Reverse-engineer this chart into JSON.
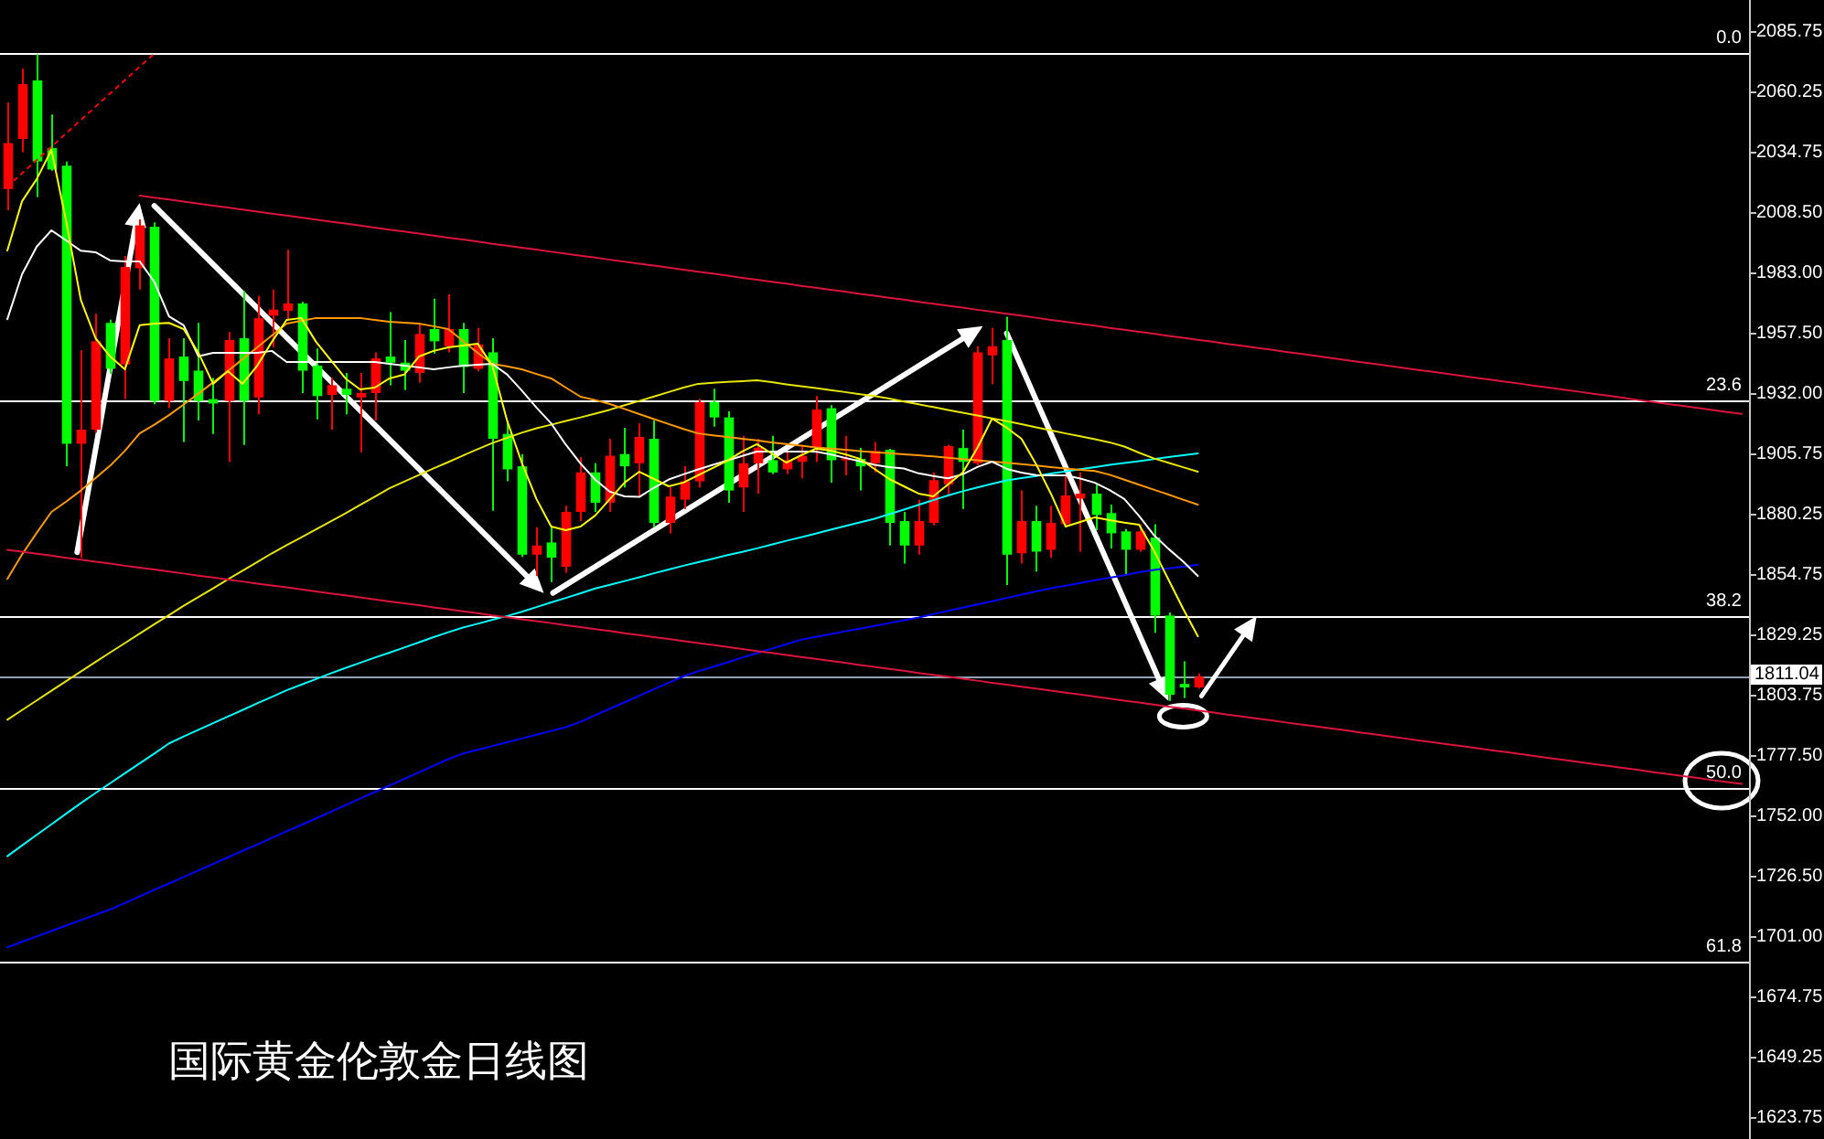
{
  "chart_data": {
    "type": "candlestick",
    "title": "国际黄金伦敦金日线图",
    "categories": [
      null,
      null,
      null,
      null,
      null,
      null,
      null,
      null,
      null,
      null,
      null,
      null,
      null,
      null,
      null,
      null,
      null,
      null,
      null,
      null,
      null,
      null,
      null,
      null,
      null,
      null,
      null,
      null,
      null,
      null,
      null,
      null,
      null,
      null,
      null,
      null,
      null,
      null,
      null,
      null,
      null,
      null,
      null,
      null,
      null,
      null,
      null,
      null,
      null,
      null,
      null,
      null,
      null,
      null,
      null,
      null,
      null,
      null,
      null,
      null,
      null,
      null,
      null,
      null,
      null,
      null,
      null,
      null,
      null,
      null,
      null,
      null,
      null,
      null,
      null,
      null,
      null,
      null,
      null,
      null,
      null,
      null,
      null,
      null,
      null,
      null,
      null,
      null,
      null,
      null,
      null,
      null,
      null,
      null,
      null,
      null,
      null,
      null,
      null,
      null,
      null,
      null,
      null,
      null,
      null,
      null,
      null,
      null,
      null,
      null,
      null,
      null,
      null,
      null,
      null,
      null,
      null,
      null,
      null
    ],
    "series": [
      {
        "type": "line",
        "color": "#0000ff",
        "values": [
          1695.9,
          1698.3,
          1700.6,
          1702.9,
          1705.2,
          1707.5,
          1709.8,
          1712.1,
          1714.8,
          1717.6,
          1720.4,
          1723.1,
          1725.9,
          1728.7,
          1731.4,
          1734.2,
          1737.0,
          1739.7,
          1742.5,
          1745.3,
          1748.0,
          1750.8,
          1753.6,
          1756.4,
          1759.2,
          1762.0,
          1764.8,
          1767.6,
          1770.4,
          1773.2,
          1776.0,
          1778.4,
          1780.0,
          1781.6,
          1783.2,
          1784.8,
          1786.4,
          1788.0,
          1789.6,
          1791.9,
          1794.7,
          1797.5,
          1800.2,
          1803.0,
          1805.8,
          1808.5,
          1811.3,
          1813.4,
          1815.3,
          1817.2,
          1819.2,
          1821.1,
          1823.0,
          1824.9,
          1826.8,
          1828.0,
          1829.2,
          1830.4,
          1831.5,
          1832.7,
          1833.9,
          1835.1,
          1836.3,
          1837.7,
          1839.1,
          1840.5,
          1841.8,
          1843.2,
          1844.6,
          1846.0,
          1847.4,
          1848.7,
          1849.8,
          1851.0,
          1852.1,
          1853.2,
          1854.3,
          1855.5,
          1856.5,
          1857.2,
          1857.9,
          1858.7,
          null,
          null,
          null,
          null,
          null,
          null,
          null,
          null,
          null,
          null,
          null,
          null,
          null,
          null,
          null,
          null,
          null,
          null,
          null,
          null,
          null,
          null,
          null,
          null,
          null,
          null,
          null,
          null,
          null,
          null,
          null,
          null,
          null,
          null,
          null,
          null,
          null
        ]
      },
      {
        "type": "line",
        "color": "#00ffff",
        "values": [
          1734.7,
          1739.3,
          1743.8,
          1748.3,
          1752.8,
          1757.3,
          1761.6,
          1765.8,
          1770.0,
          1774.2,
          1778.4,
          1782.7,
          1785.7,
          1788.5,
          1791.3,
          1794.1,
          1796.9,
          1799.8,
          1802.5,
          1805.3,
          1807.7,
          1810.1,
          1812.5,
          1814.8,
          1817.0,
          1819.2,
          1821.3,
          1823.5,
          1825.7,
          1827.9,
          1830.0,
          1832.0,
          1833.6,
          1835.3,
          1836.9,
          1838.7,
          1840.7,
          1842.7,
          1844.6,
          1846.6,
          1848.6,
          1850.2,
          1851.8,
          1853.4,
          1855.1,
          1856.7,
          1858.3,
          1859.8,
          1861.3,
          1862.8,
          1864.2,
          1865.7,
          1867.3,
          1868.9,
          1870.4,
          1872.0,
          1873.6,
          1875.2,
          1876.7,
          1878.3,
          1880.2,
          1882.2,
          1884.2,
          1886.2,
          1888.2,
          1890.0,
          1891.6,
          1893.2,
          1894.6,
          1895.6,
          1896.5,
          1897.5,
          1898.4,
          1899.4,
          1900.3,
          1901.2,
          1902.0,
          1902.8,
          1903.7,
          1904.5,
          1905.3,
          1906.1,
          null,
          null,
          null,
          null,
          null,
          null,
          null,
          null,
          null,
          null,
          null,
          null,
          null,
          null,
          null,
          null,
          null,
          null,
          null,
          null,
          null,
          null,
          null,
          null,
          null,
          null,
          null,
          null,
          null,
          null,
          null,
          null,
          null,
          null,
          null,
          null,
          null
        ]
      },
      {
        "type": "line",
        "color": "#e6e600",
        "values": [
          1792.8,
          1796.9,
          1801.0,
          1805.1,
          1809.2,
          1813.3,
          1817.4,
          1821.4,
          1825.4,
          1829.4,
          1833.4,
          1837.3,
          1841.3,
          1845.0,
          1848.7,
          1852.5,
          1856.2,
          1859.9,
          1863.6,
          1867.1,
          1870.4,
          1873.8,
          1877.2,
          1880.6,
          1884.2,
          1887.7,
          1891.3,
          1894.1,
          1896.9,
          1899.7,
          1902.4,
          1905.2,
          1907.9,
          1910.5,
          1912.7,
          1914.9,
          1916.8,
          1918.3,
          1919.9,
          1921.4,
          1923.0,
          1924.7,
          1926.6,
          1928.4,
          1930.3,
          1932.2,
          1934.1,
          1935.7,
          1936.1,
          1936.5,
          1936.8,
          1937.2,
          1936.4,
          1935.5,
          1934.7,
          1933.9,
          1933.0,
          1932.2,
          1931.3,
          1930.5,
          1929.4,
          1928.2,
          1927.0,
          1925.8,
          1924.6,
          1923.4,
          1922.2,
          1921.0,
          1919.8,
          1918.5,
          1917.2,
          1915.9,
          1914.6,
          1913.4,
          1912.1,
          1910.8,
          1909.0,
          1906.4,
          1904.0,
          1902.1,
          1900.2,
          1898.3,
          null,
          null,
          null,
          null,
          null,
          null,
          null,
          null,
          null,
          null,
          null,
          null,
          null,
          null,
          null,
          null,
          null,
          null,
          null,
          null,
          null,
          null,
          null,
          null,
          null,
          null,
          null,
          null,
          null,
          null,
          null,
          null,
          null,
          null,
          null,
          null,
          null
        ]
      },
      {
        "type": "line",
        "color": "#ff9900",
        "values": [
          1852.7,
          1863.1,
          1872.3,
          1881.2,
          1885.6,
          1890.3,
          1895.6,
          1900.9,
          1907.2,
          1914.6,
          1918.3,
          1922.4,
          1926.9,
          1931.5,
          1936.3,
          1941.1,
          1946.2,
          1951.2,
          1956.3,
          1961.3,
          1962.5,
          1963.7,
          1963.7,
          1963.7,
          1963.7,
          1962.9,
          1962.1,
          1961.7,
          1961.3,
          1960.2,
          1959.0,
          1953.9,
          1948.9,
          1944.2,
          1943.1,
          1941.9,
          1939.9,
          1938.0,
          1934.1,
          1930.2,
          1928.8,
          1927.1,
          1925.0,
          1922.8,
          1920.7,
          1918.6,
          1916.5,
          1914.6,
          1913.8,
          1913.1,
          1912.3,
          1911.6,
          1910.8,
          1910.1,
          1909.4,
          1908.6,
          1908.1,
          1907.6,
          1907.1,
          1906.6,
          1906.2,
          1905.7,
          1905.3,
          1904.8,
          1904.2,
          1903.7,
          1903.2,
          1902.6,
          1902.1,
          1901.5,
          1900.9,
          1900.3,
          1899.7,
          1899.1,
          1898.6,
          1897.0,
          1894.9,
          1892.8,
          1890.7,
          1888.6,
          1886.4,
          1884.3,
          null,
          null,
          null,
          null,
          null,
          null,
          null,
          null,
          null,
          null,
          null,
          null,
          null,
          null,
          null,
          null,
          null,
          null,
          null,
          null,
          null,
          null,
          null,
          null,
          null,
          null,
          null,
          null,
          null,
          null,
          null,
          null,
          null,
          null,
          null,
          null,
          null
        ]
      },
      {
        "type": "line",
        "color": "#ffffff",
        "values": [
          1963.2,
          1982.3,
          1994.1,
          2001.0,
          1996.7,
          1992.3,
          1991.7,
          1988.2,
          1987.8,
          1987.8,
          1979.1,
          1964.4,
          1960.6,
          1947.4,
          1948.9,
          1948.9,
          1948.9,
          1948.9,
          1949.7,
          1945.0,
          1945.0,
          1945.0,
          1945.0,
          1945.0,
          1945.0,
          1945.0,
          1944.2,
          1943.4,
          1942.7,
          1941.9,
          1942.7,
          1943.4,
          1943.8,
          1944.2,
          1939.7,
          1932.9,
          1925.6,
          1918.9,
          1909.8,
          1901.8,
          1894.9,
          1889.8,
          1887.8,
          1887.6,
          1891.5,
          1895.0,
          1897.2,
          1899.3,
          1901.2,
          1903.1,
          1905.0,
          1906.9,
          1906.9,
          1906.9,
          1906.9,
          1906.9,
          1905.7,
          1904.2,
          1902.8,
          1901.2,
          1900.3,
          1899.7,
          1897.6,
          1896.5,
          1895.5,
          1897.2,
          1900.3,
          1902.6,
          1899.5,
          1897.9,
          1896.9,
          1896.8,
          1896.8,
          1895.4,
          1893.6,
          1890.5,
          1886.7,
          1879.5,
          1871.4,
          1865.5,
          1860.1,
          1854.0,
          null,
          null,
          null,
          null,
          null,
          null,
          null,
          null,
          null,
          null,
          null,
          null,
          null,
          null,
          null,
          null,
          null,
          null,
          null,
          null,
          null,
          null,
          null,
          null,
          null,
          null,
          null,
          null,
          null,
          null,
          null,
          null,
          null,
          null,
          null,
          null,
          null
        ]
      },
      {
        "type": "line",
        "color": "#ffff00",
        "values": [
          1992.4,
          2013.4,
          2022.8,
          2035.2,
          2004.9,
          1971.4,
          1955.1,
          1947.3,
          1941.9,
          1960.6,
          1961.3,
          1961.6,
          1959.0,
          1948.9,
          1935.7,
          1941.1,
          1935.7,
          1943.4,
          1953.6,
          1962.9,
          1963.7,
          1953.6,
          1945.8,
          1938.0,
          1933.3,
          1934.1,
          1938.0,
          1939.6,
          1947.3,
          1949.7,
          1951.2,
          1952.0,
          1952.8,
          1943.4,
          1920.1,
          1902.2,
          1886.7,
          1875.0,
          1873.4,
          1875.0,
          1879.7,
          1886.7,
          1893.7,
          1898.3,
          1895.2,
          1892.1,
          1893.7,
          1896.8,
          1899.9,
          1903.0,
          1906.9,
          1910.0,
          1906.1,
          1902.2,
          1905.3,
          1908.1,
          1907.3,
          1905.7,
          1903.8,
          1899.5,
          1895.2,
          1892.1,
          1889.0,
          1887.8,
          1892.9,
          1897.9,
          1908.4,
          1920.9,
          1917.0,
          1912.3,
          1901.4,
          1889.0,
          1875.0,
          1876.9,
          1878.9,
          1877.7,
          1876.6,
          1875.8,
          1864.9,
          1852.4,
          1840.0,
          1828.3,
          null,
          null,
          null,
          null,
          null,
          null,
          null,
          null,
          null,
          null,
          null,
          null,
          null,
          null,
          null,
          null,
          null,
          null,
          null,
          null,
          null,
          null,
          null,
          null,
          null,
          null,
          null,
          null,
          null,
          null,
          null,
          null,
          null,
          null,
          null,
          null,
          null
        ]
      },
      {
        "type": "line",
        "color": "#dc143c",
        "values": [
          null,
          null,
          null,
          null,
          null,
          null,
          null,
          null,
          null,
          2015.8,
          2014.9,
          2014.1,
          2013.2,
          2012.4,
          2011.5,
          2010.7,
          2009.8,
          2009.0,
          2008.1,
          2007.3,
          2006.4,
          2005.6,
          2004.7,
          2003.9,
          2003.0,
          2002.2,
          2001.3,
          2000.5,
          1999.6,
          1998.8,
          1997.9,
          1997.1,
          1996.2,
          1995.3,
          1994.5,
          1993.6,
          1992.8,
          1991.9,
          1991.1,
          1990.2,
          1989.4,
          1988.5,
          1987.7,
          1986.8,
          1986.0,
          1985.1,
          1984.3,
          1983.4,
          1982.6,
          1981.7,
          1980.8,
          1980.0,
          1979.1,
          1978.3,
          1977.4,
          1976.6,
          1975.7,
          1974.9,
          1974.0,
          1973.2,
          1972.3,
          1971.5,
          1970.6,
          1969.8,
          1968.9,
          1968.1,
          1967.2,
          1966.4,
          1965.5,
          1964.7,
          1963.8,
          1962.9,
          1962.1,
          1961.2,
          1960.4,
          1959.5,
          1958.7,
          1957.8,
          1957.0,
          1956.1,
          1955.3,
          1954.4,
          1953.6,
          1952.7,
          1951.9,
          1951.0,
          1950.2,
          1949.3,
          1948.5,
          1947.6,
          1946.7,
          1945.9,
          1945.0,
          1944.2,
          1943.3,
          1942.5,
          1941.6,
          1940.8,
          1939.9,
          1939.1,
          1938.2,
          1937.4,
          1936.5,
          1935.7,
          1934.8,
          1934.0,
          1933.1,
          1932.3,
          1931.4,
          1930.6,
          1929.7,
          1928.8,
          1928.0,
          1927.1,
          1926.3,
          1925.4,
          1924.6,
          1923.7,
          1922.9
        ]
      },
      {
        "type": "line",
        "color": "#dc143c",
        "values": [
          1865.1,
          1864.3,
          1863.4,
          1862.6,
          1861.7,
          1860.9,
          1860.0,
          1859.2,
          1858.3,
          1857.5,
          1856.7,
          1855.8,
          1855.0,
          1854.1,
          1853.3,
          1852.4,
          1851.6,
          1850.7,
          1849.9,
          1849.1,
          1848.2,
          1847.4,
          1846.5,
          1845.7,
          1844.8,
          1844.0,
          1843.1,
          1842.3,
          1841.5,
          1840.6,
          1839.8,
          1838.9,
          1838.1,
          1837.2,
          1836.4,
          1835.5,
          1834.7,
          1833.9,
          1833.0,
          1832.2,
          1831.3,
          1830.5,
          1829.6,
          1828.8,
          1827.9,
          1827.1,
          1826.3,
          1825.4,
          1824.6,
          1823.7,
          1822.9,
          1822.0,
          1821.2,
          1820.3,
          1819.5,
          1818.7,
          1817.8,
          1817.0,
          1816.1,
          1815.3,
          1814.4,
          1813.6,
          1812.7,
          1811.9,
          1811.1,
          1810.2,
          1809.4,
          1808.5,
          1807.7,
          1806.8,
          1806.0,
          1805.2,
          1804.3,
          1803.5,
          1802.6,
          1801.8,
          1800.9,
          1800.1,
          1799.2,
          1798.4,
          1797.6,
          1796.7,
          1795.9,
          1795.0,
          1794.2,
          1793.3,
          1792.5,
          1791.6,
          1790.8,
          1790.0,
          1789.1,
          1788.3,
          1787.4,
          1786.6,
          1785.7,
          1784.9,
          1784.0,
          1783.2,
          1782.3,
          1781.5,
          1780.7,
          1779.8,
          1779.0,
          1778.1,
          1777.3,
          1776.4,
          1775.6,
          1774.7,
          1773.9,
          1773.1,
          1772.2,
          1771.4,
          1770.5,
          1769.7,
          1768.8,
          1768.0,
          1767.1,
          1766.3,
          1765.5
        ]
      },
      {
        "type": "line",
        "color": "#ff0000",
        "line_style": "dotted",
        "values": [
          2019.6,
          2025.3,
          2030.9,
          2036.6,
          2042.3,
          2047.9,
          2053.6,
          2059.3,
          2064.9,
          2070.6,
          2076.2,
          null,
          null,
          null,
          null,
          null,
          null,
          null,
          null,
          null,
          null,
          null,
          null,
          null,
          null,
          null,
          null,
          null,
          null,
          null,
          null,
          null,
          null,
          null,
          null,
          null,
          null,
          null,
          null,
          null,
          null,
          null,
          null,
          null,
          null,
          null,
          null,
          null,
          null,
          null,
          null,
          null,
          null,
          null,
          null,
          null,
          null,
          null,
          null,
          null,
          null,
          null,
          null,
          null,
          null,
          null,
          null,
          null,
          null,
          null,
          null,
          null,
          null,
          null,
          null,
          null,
          null,
          null,
          null,
          null,
          null,
          null,
          null,
          null,
          null,
          null,
          null,
          null,
          null,
          null,
          null,
          null,
          null,
          null,
          null,
          null,
          null,
          null,
          null,
          null,
          null,
          null,
          null,
          null,
          null,
          null,
          null,
          null,
          null,
          null,
          null,
          null,
          null,
          null,
          null,
          null,
          null,
          null,
          null
        ]
      },
      {
        "ohlc": [
          [
            2018.6,
            2055.4,
            2009.5,
            2038.1
          ],
          [
            2039.9,
            2069.7,
            2034.2,
            2063.2
          ],
          [
            2064.8,
            2076.0,
            2015.2,
            2030.3
          ],
          [
            2036.0,
            2050.3,
            2026.4,
            2026.9
          ],
          [
            2028.5,
            2030.3,
            1900.6,
            1910.2
          ],
          [
            1910.2,
            1949.9,
            1861.7,
            1916.2
          ],
          [
            1916.2,
            1965.5,
            1914.9,
            1953.8
          ],
          [
            1961.6,
            1963.0,
            1940.0,
            1942.1
          ],
          [
            1943.9,
            1990.1,
            1929.2,
            1985.4
          ],
          [
            1984.9,
            2005.7,
            1975.8,
            2003.1
          ],
          [
            2002.5,
            2004.4,
            1927.0,
            1928.4
          ],
          [
            1928.4,
            1955.1,
            1925.3,
            1946.5
          ],
          [
            1947.3,
            1955.1,
            1911.0,
            1936.9
          ],
          [
            1941.3,
            1961.6,
            1920.1,
            1928.4
          ],
          [
            1929.2,
            1938.2,
            1914.4,
            1927.3
          ],
          [
            1928.4,
            1957.7,
            1902.5,
            1954.3
          ],
          [
            1955.1,
            1975.1,
            1909.7,
            1928.4
          ],
          [
            1929.9,
            1973.2,
            1922.7,
            1963.6
          ],
          [
            1964.7,
            1975.8,
            1951.2,
            1967.3
          ],
          [
            1966.8,
            1992.7,
            1962.9,
            1969.9
          ],
          [
            1969.9,
            1970.6,
            1931.8,
            1941.3
          ],
          [
            1943.4,
            1950.7,
            1920.6,
            1930.5
          ],
          [
            1931.0,
            1938.2,
            1916.2,
            1935.1
          ],
          [
            1933.6,
            1940.3,
            1922.7,
            1931.0
          ],
          [
            1929.9,
            1940.3,
            1906.6,
            1931.8
          ],
          [
            1931.8,
            1949.1,
            1920.1,
            1946.5
          ],
          [
            1947.3,
            1966.2,
            1935.1,
            1944.7
          ],
          [
            1944.7,
            1954.3,
            1933.0,
            1941.3
          ],
          [
            1940.3,
            1961.6,
            1936.2,
            1956.9
          ],
          [
            1959.0,
            1971.9,
            1948.6,
            1953.8
          ],
          [
            1951.7,
            1973.8,
            1949.1,
            1959.0
          ],
          [
            1959.0,
            1961.6,
            1931.8,
            1942.9
          ],
          [
            1942.1,
            1959.5,
            1941.0,
            1952.5
          ],
          [
            1949.1,
            1955.1,
            1881.7,
            1912.3
          ],
          [
            1914.4,
            1920.1,
            1894.2,
            1899.3
          ],
          [
            1900.6,
            1905.8,
            1862.0,
            1863.0
          ],
          [
            1863.0,
            1874.7,
            1854.0,
            1866.9
          ],
          [
            1868.2,
            1874.7,
            1851.4,
            1861.7
          ],
          [
            1857.9,
            1883.8,
            1855.3,
            1881.2
          ],
          [
            1881.2,
            1904.5,
            1877.3,
            1898.0
          ],
          [
            1898.0,
            1901.9,
            1881.2,
            1885.1
          ],
          [
            1885.1,
            1912.3,
            1881.2,
            1905.1
          ],
          [
            1905.8,
            1917.0,
            1891.6,
            1900.6
          ],
          [
            1901.9,
            1918.8,
            1887.7,
            1913.1
          ],
          [
            1912.3,
            1920.1,
            1874.7,
            1876.5
          ],
          [
            1876.5,
            1891.6,
            1872.1,
            1887.7
          ],
          [
            1886.4,
            1900.6,
            1882.5,
            1894.2
          ],
          [
            1894.2,
            1929.2,
            1891.6,
            1927.9
          ],
          [
            1927.9,
            1933.6,
            1917.5,
            1921.4
          ],
          [
            1921.4,
            1924.0,
            1885.1,
            1890.3
          ],
          [
            1891.6,
            1913.6,
            1881.2,
            1901.9
          ],
          [
            1901.9,
            1912.3,
            1889.0,
            1908.4
          ],
          [
            1903.2,
            1913.6,
            1897.3,
            1898.0
          ],
          [
            1899.3,
            1907.1,
            1897.3,
            1903.2
          ],
          [
            1902.5,
            1909.7,
            1895.5,
            1905.1
          ],
          [
            1908.4,
            1930.5,
            1902.5,
            1924.8
          ],
          [
            1925.3,
            1926.6,
            1893.6,
            1903.2
          ],
          [
            1903.2,
            1913.6,
            1896.8,
            1904.0
          ],
          [
            1903.8,
            1908.4,
            1890.3,
            1900.6
          ],
          [
            1901.9,
            1911.0,
            1898.0,
            1907.1
          ],
          [
            1907.6,
            1908.0,
            1866.9,
            1876.5
          ],
          [
            1877.3,
            1881.2,
            1859.2,
            1866.9
          ],
          [
            1866.9,
            1886.4,
            1863.0,
            1877.3
          ],
          [
            1876.5,
            1898.0,
            1875.5,
            1894.7
          ],
          [
            1892.9,
            1909.7,
            1887.7,
            1909.2
          ],
          [
            1908.4,
            1916.2,
            1882.5,
            1902.5
          ],
          [
            1901.9,
            1951.7,
            1901.0,
            1949.1
          ],
          [
            1947.8,
            1959.5,
            1935.6,
            1951.7
          ],
          [
            1954.3,
            1964.2,
            1850.1,
            1863.0
          ],
          [
            1863.6,
            1890.3,
            1859.2,
            1877.3
          ],
          [
            1877.3,
            1883.8,
            1855.8,
            1864.3
          ],
          [
            1865.1,
            1883.8,
            1861.7,
            1876.5
          ],
          [
            1876.0,
            1897.3,
            1874.7,
            1888.2
          ],
          [
            1886.9,
            1898.0,
            1864.3,
            1889.0
          ],
          [
            1889.0,
            1892.8,
            1873.4,
            1879.9
          ],
          [
            1880.7,
            1884.3,
            1865.6,
            1872.1
          ],
          [
            1872.9,
            1873.9,
            1854.0,
            1865.1
          ],
          [
            1865.1,
            1876.0,
            1864.3,
            1872.9
          ],
          [
            1870.3,
            1876.0,
            1829.8,
            1837.1
          ],
          [
            1837.1,
            1838.4,
            1800.8,
            1803.4
          ],
          [
            1808.0,
            1817.6,
            1802.1,
            1806.5
          ],
          [
            1806.5,
            1812.5,
            1806.0,
            1811.04
          ],
          null,
          null,
          null,
          null,
          null,
          null,
          null,
          null,
          null,
          null,
          null,
          null,
          null,
          null,
          null,
          null,
          null,
          null,
          null,
          null,
          null,
          null,
          null,
          null,
          null,
          null,
          null,
          null,
          null,
          null,
          null,
          null,
          null,
          null,
          null,
          null,
          null
        ],
        "colors": [
          "#ff0000",
          "#ff0000",
          "#00ff00",
          "#00ff00",
          "#00ff00",
          "#ff0000",
          "#ff0000",
          "#00ff00",
          "#ff0000",
          "#ff0000",
          "#00ff00",
          "#ff0000",
          "#00ff00",
          "#00ff00",
          "#00ff00",
          "#ff0000",
          "#00ff00",
          "#ff0000",
          "#ff0000",
          "#ff0000",
          "#00ff00",
          "#00ff00",
          "#ff0000",
          "#00ff00",
          "#ff0000",
          "#ff0000",
          "#00ff00",
          "#00ff00",
          "#ff0000",
          "#00ff00",
          "#ff0000",
          "#00ff00",
          "#ff0000",
          "#00ff00",
          "#00ff00",
          "#00ff00",
          "#ff0000",
          "#00ff00",
          "#ff0000",
          "#ff0000",
          "#00ff00",
          "#ff0000",
          "#00ff00",
          "#ff0000",
          "#00ff00",
          "#ff0000",
          "#ff0000",
          "#ff0000",
          "#00ff00",
          "#00ff00",
          "#ff0000",
          "#ff0000",
          "#00ff00",
          "#ff0000",
          "#ff0000",
          "#ff0000",
          "#00ff00",
          "#ff0000",
          "#00ff00",
          "#ff0000",
          "#00ff00",
          "#00ff00",
          "#ff0000",
          "#ff0000",
          "#ff0000",
          "#00ff00",
          "#ff0000",
          "#ff0000",
          "#00ff00",
          "#ff0000",
          "#00ff00",
          "#ff0000",
          "#ff0000",
          "#ff0000",
          "#00ff00",
          "#00ff00",
          "#00ff00",
          "#ff0000",
          "#00ff00",
          "#00ff00",
          "#00ff00",
          "#ff0000",
          null,
          null,
          null,
          null,
          null,
          null,
          null,
          null,
          null,
          null,
          null,
          null,
          null,
          null,
          null,
          null,
          null,
          null,
          null,
          null,
          null,
          null,
          null,
          null,
          null,
          null,
          null,
          null,
          null,
          null,
          null,
          null,
          null,
          null,
          null,
          null,
          null
        ]
      }
    ],
    "ylim": [
      1614.4,
      2099.0
    ],
    "yticks": [
      2085.75,
      2060.25,
      2034.75,
      {
        "value": 2008.5,
        "label": "2008.50"
      },
      {
        "value": 1983,
        "label": "1983.00"
      },
      {
        "value": 1957.5,
        "label": "1957.50"
      },
      {
        "value": 1932,
        "label": "1932.00"
      },
      1905.75,
      1880.25,
      1854.75,
      1829.25,
      1803.75,
      {
        "value": 1777.5,
        "label": "1777.50"
      },
      {
        "value": 1752,
        "label": "1752.00"
      },
      {
        "value": 1726.5,
        "label": "1726.50"
      },
      {
        "value": 1701,
        "label": "1701.00"
      },
      1674.75,
      1649.25,
      1623.75
    ],
    "ref_lines": [
      {
        "axis": "y",
        "value": 2076.4,
        "color": "#ffffff"
      },
      {
        "axis": "y",
        "value": 1928.8,
        "color": "#ffffff"
      },
      {
        "axis": "y",
        "value": 1836.9,
        "color": "#ffffff"
      },
      {
        "axis": "y",
        "value": 1763.7,
        "color": "#ffffff"
      },
      {
        "axis": "y",
        "value": 1689.9,
        "color": "#ffffff"
      },
      {
        "axis": "y",
        "value": 1811.04,
        "label": "1811.04",
        "color": "#8fa3b5"
      }
    ],
    "annotations": [
      {
        "text": "0.0",
        "y": 2076.4
      },
      {
        "text": "23.6",
        "y": 1928.8
      },
      {
        "text": "38.2",
        "y": 1836.9
      },
      {
        "text": "50.0",
        "y": 1763.7
      },
      {
        "text": "61.8",
        "y": 1689.9
      }
    ],
    "tick_labels": "y"
  }
}
